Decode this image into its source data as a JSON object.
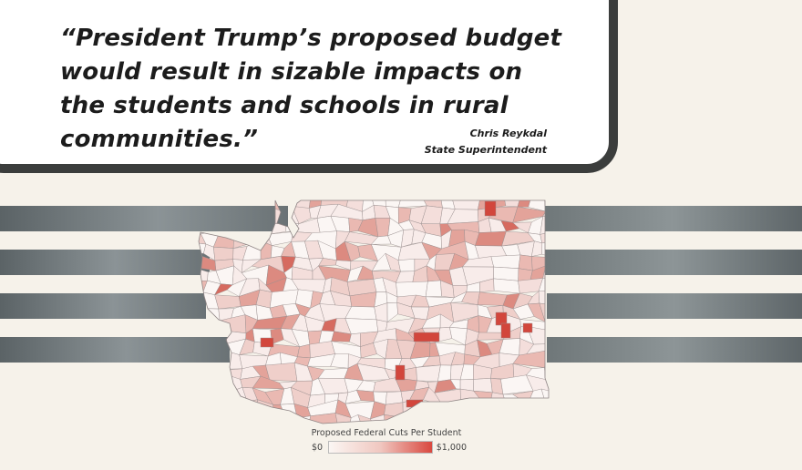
{
  "quote": {
    "text": "“President Trump’s proposed budget would result in sizable impacts on the students and schools in rural communities.”",
    "author": "Chris Reykdal",
    "author_title": "State Superintendent"
  },
  "legend": {
    "title": "Proposed Federal Cuts Per Student",
    "min_label": "$0",
    "max_label": "$1,000",
    "color_low": "#fbf6f3",
    "color_high": "#d9483f"
  },
  "colors": {
    "background": "#f6f2ea",
    "card_border": "#3b3d3c",
    "stripe": "#7a8285",
    "district_border": "#9a8f8f"
  }
}
